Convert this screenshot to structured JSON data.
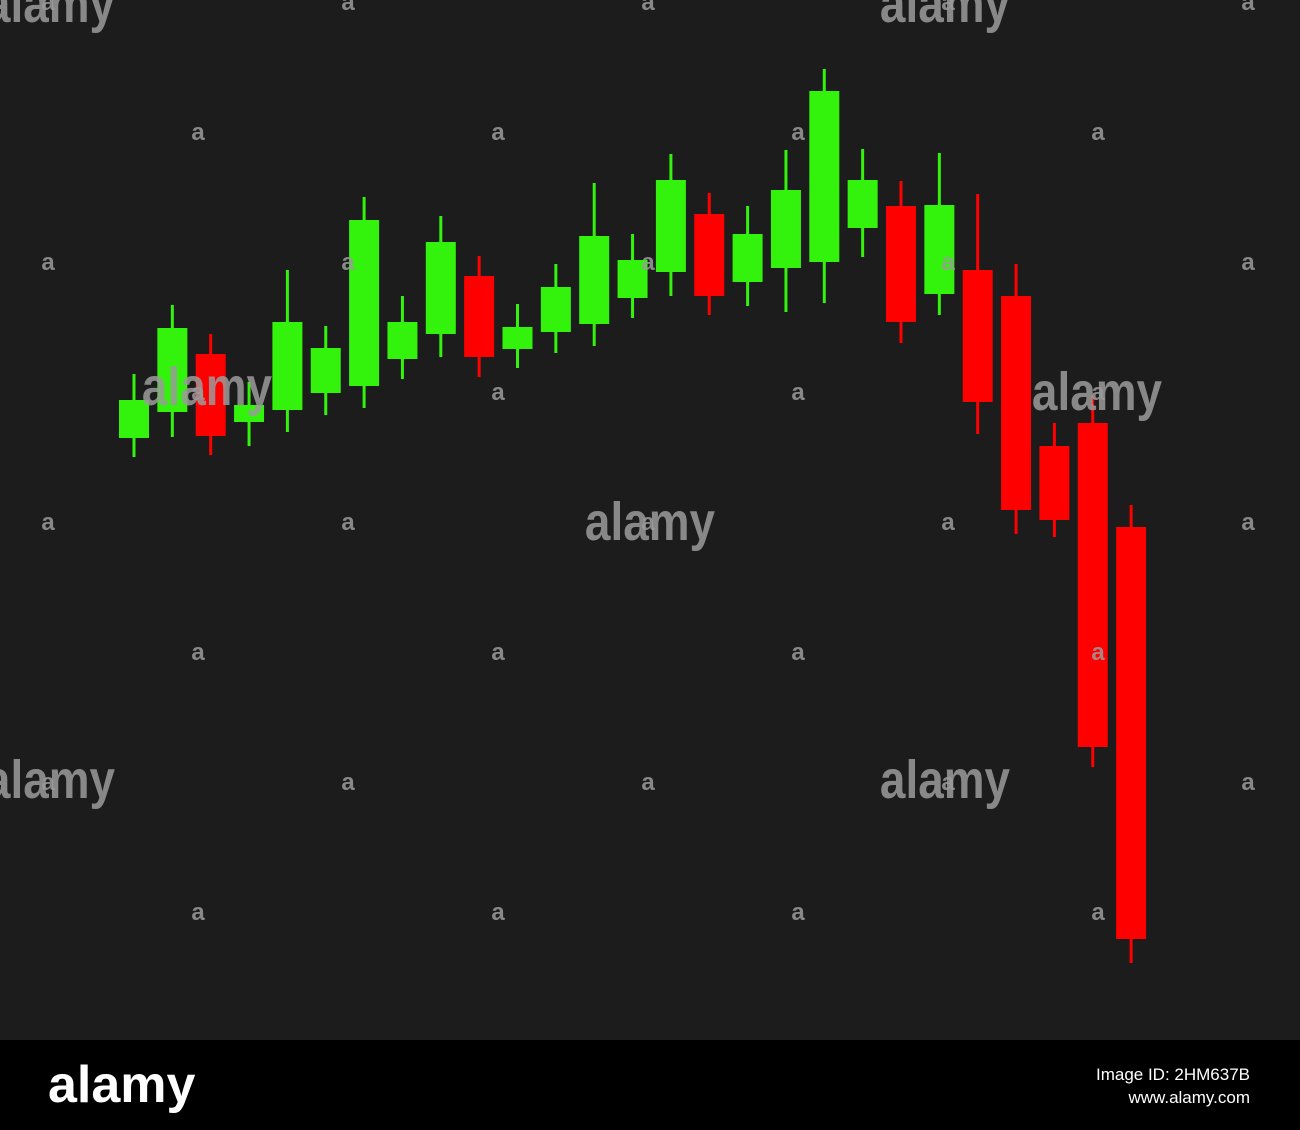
{
  "chart_data": {
    "type": "candlestick",
    "open": [
      602,
      628,
      686,
      618,
      630,
      647,
      654,
      681,
      706,
      764,
      691,
      708,
      716,
      742,
      768,
      826,
      758,
      772,
      778,
      812,
      834,
      746,
      770,
      744,
      594,
      617,
      513
    ],
    "high": [
      666,
      735,
      706,
      658,
      770,
      714,
      843,
      744,
      824,
      784,
      736,
      776,
      857,
      806,
      886,
      847,
      834,
      890,
      971,
      891,
      859,
      887,
      846,
      776,
      617,
      644,
      535
    ],
    "low": [
      583,
      603,
      585,
      594,
      608,
      625,
      632,
      661,
      683,
      663,
      672,
      687,
      694,
      722,
      744,
      725,
      734,
      728,
      737,
      783,
      697,
      725,
      606,
      506,
      503,
      273,
      77
    ],
    "close": [
      640,
      712,
      604,
      635,
      718,
      692,
      820,
      718,
      798,
      683,
      713,
      753,
      804,
      780,
      860,
      744,
      806,
      850,
      949,
      860,
      718,
      835,
      638,
      530,
      520,
      293,
      101
    ],
    "up_color": "#33f20c",
    "down_color": "#ff0000",
    "ylim": [
      0,
      1040
    ]
  },
  "watermark": "alamy",
  "watermark_small": "a",
  "footer": {
    "logo": "alamy",
    "image_id": "Image ID: 2HM637B",
    "url": "www.alamy.com"
  }
}
